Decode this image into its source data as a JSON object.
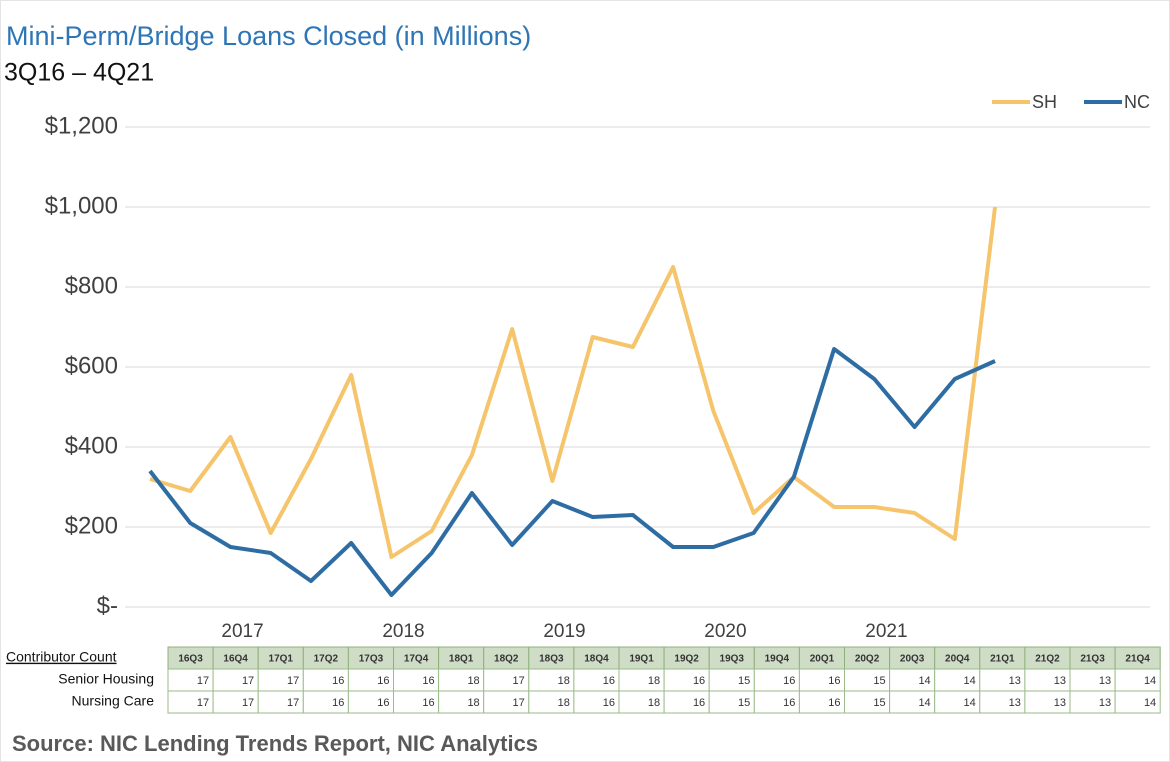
{
  "chart_data": {
    "type": "line",
    "title": "Mini-Perm/Bridge Loans Closed (in Millions)",
    "subtitle": "3Q16 – 4Q21",
    "categories": [
      "16Q3",
      "16Q4",
      "17Q1",
      "17Q2",
      "17Q3",
      "17Q4",
      "18Q1",
      "18Q2",
      "18Q3",
      "18Q4",
      "19Q1",
      "19Q2",
      "19Q3",
      "19Q4",
      "20Q1",
      "20Q2",
      "20Q3",
      "20Q4",
      "21Q1",
      "21Q2",
      "21Q3",
      "21Q4"
    ],
    "year_labels": [
      "2017",
      "2018",
      "2019",
      "2020",
      "2021"
    ],
    "series": [
      {
        "name": "SH",
        "color": "#f5c46b",
        "values": [
          320,
          290,
          425,
          185,
          370,
          580,
          125,
          190,
          380,
          695,
          315,
          675,
          650,
          850,
          490,
          235,
          325,
          250,
          250,
          235,
          170,
          1000
        ]
      },
      {
        "name": "NC",
        "color": "#2e6da4",
        "values": [
          340,
          210,
          150,
          135,
          65,
          160,
          30,
          135,
          285,
          155,
          265,
          225,
          230,
          150,
          150,
          185,
          325,
          645,
          570,
          450,
          570,
          615
        ]
      }
    ],
    "ylim": [
      0,
      1200
    ],
    "yticks": [
      {
        "value": 0,
        "label": "$-"
      },
      {
        "value": 200,
        "label": "$200"
      },
      {
        "value": 400,
        "label": "$400"
      },
      {
        "value": 600,
        "label": "$600"
      },
      {
        "value": 800,
        "label": "$800"
      },
      {
        "value": 1000,
        "label": "$1,000"
      },
      {
        "value": 1200,
        "label": "$1,200"
      }
    ],
    "grid": true,
    "legend": "top-right",
    "table": {
      "header": "Contributor Count",
      "rows": [
        {
          "name": "Senior Housing",
          "values": [
            17,
            17,
            17,
            16,
            16,
            16,
            18,
            17,
            18,
            16,
            18,
            16,
            15,
            16,
            16,
            15,
            14,
            14,
            13,
            13,
            13,
            14
          ]
        },
        {
          "name": "Nursing Care",
          "values": [
            17,
            17,
            17,
            16,
            16,
            16,
            18,
            17,
            18,
            16,
            18,
            16,
            15,
            16,
            16,
            15,
            14,
            14,
            13,
            13,
            13,
            14
          ]
        }
      ]
    },
    "source": "Source: NIC Lending Trends Report, NIC Analytics"
  }
}
